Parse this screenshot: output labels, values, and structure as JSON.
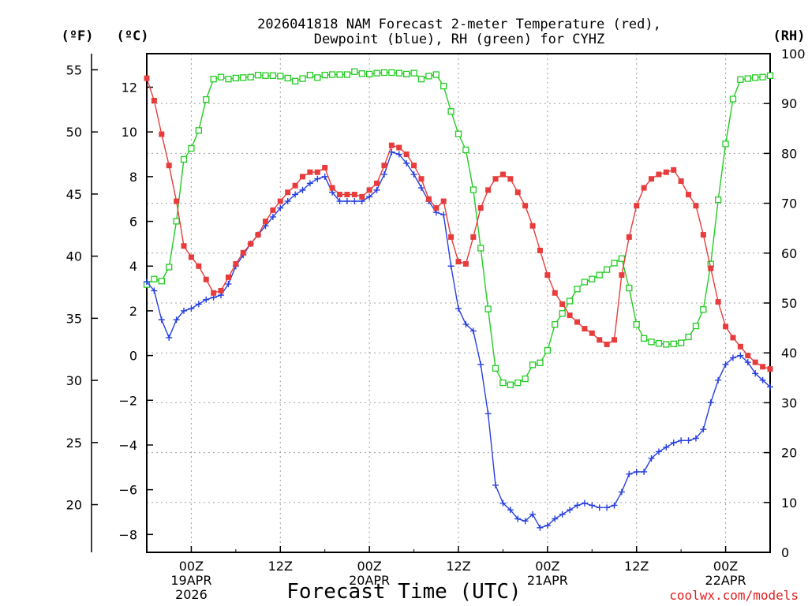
{
  "chart_data": {
    "type": "line",
    "title_line1": "2026041818 NAM Forecast 2-meter Temperature (red),",
    "title_line2": "Dewpoint (blue), RH (green) for CYHZ",
    "xlabel": "Forecast Time (UTC)",
    "credit": "coolwx.com/models",
    "unit_left_f": "(ºF)",
    "unit_left_c": "(ºC)",
    "unit_right": "(RH)",
    "x_range_hours": [
      -6,
      78
    ],
    "y_range_c": [
      -8.8,
      13.5
    ],
    "rh_range": [
      0,
      100
    ],
    "x_ticks": [
      {
        "h": 0,
        "l1": "00Z",
        "l2": "19APR",
        "l3": "2026"
      },
      {
        "h": 12,
        "l1": "12Z",
        "l2": "",
        "l3": ""
      },
      {
        "h": 24,
        "l1": "00Z",
        "l2": "20APR",
        "l3": ""
      },
      {
        "h": 36,
        "l1": "12Z",
        "l2": "",
        "l3": ""
      },
      {
        "h": 48,
        "l1": "00Z",
        "l2": "21APR",
        "l3": ""
      },
      {
        "h": 60,
        "l1": "12Z",
        "l2": "",
        "l3": ""
      },
      {
        "h": 72,
        "l1": "00Z",
        "l2": "22APR",
        "l3": ""
      }
    ],
    "c_ticks": [
      -8,
      -6,
      -4,
      -2,
      0,
      2,
      4,
      6,
      8,
      10,
      12
    ],
    "f_ticks": [
      20,
      25,
      30,
      35,
      40,
      45,
      50,
      55
    ],
    "rh_ticks": [
      0,
      10,
      20,
      30,
      40,
      50,
      60,
      70,
      80,
      90,
      100
    ],
    "colors": {
      "temperature": "#e83c3c",
      "dewpoint": "#2840e0",
      "rh": "#22cc22",
      "grid": "#a0a0a0"
    },
    "series": [
      {
        "name": "Temperature (red)",
        "unit": "C",
        "marker": "square-filled",
        "x": [
          -6,
          -5,
          -4,
          -3,
          -2,
          -1,
          0,
          1,
          2,
          3,
          4,
          5,
          6,
          7,
          8,
          9,
          10,
          11,
          12,
          13,
          14,
          15,
          16,
          17,
          18,
          19,
          20,
          21,
          22,
          23,
          24,
          25,
          26,
          27,
          28,
          29,
          30,
          31,
          32,
          33,
          34,
          35,
          36,
          37,
          38,
          39,
          40,
          41,
          42,
          43,
          44,
          45,
          46,
          47,
          48,
          49,
          50,
          51,
          52,
          53,
          54,
          55,
          56,
          57,
          58,
          59,
          60,
          61,
          62,
          63,
          64,
          65,
          66,
          67,
          68,
          69,
          70,
          71,
          72,
          73,
          74,
          75,
          76,
          77,
          78
        ],
        "values": [
          12.4,
          11.4,
          9.9,
          8.5,
          6.9,
          4.9,
          4.4,
          4.0,
          3.4,
          2.8,
          2.9,
          3.5,
          4.1,
          4.6,
          5.0,
          5.4,
          6.0,
          6.5,
          6.9,
          7.3,
          7.6,
          8.0,
          8.2,
          8.2,
          8.4,
          7.5,
          7.2,
          7.2,
          7.2,
          7.1,
          7.4,
          7.7,
          8.5,
          9.4,
          9.3,
          9.0,
          8.5,
          7.9,
          7.0,
          6.6,
          6.9,
          5.3,
          4.2,
          4.1,
          5.3,
          6.6,
          7.4,
          7.9,
          8.1,
          7.9,
          7.3,
          6.7,
          5.8,
          4.7,
          3.6,
          2.8,
          2.3,
          1.8,
          1.5,
          1.2,
          1.0,
          0.7,
          0.5,
          0.7,
          3.6,
          5.3,
          6.7,
          7.5,
          7.9,
          8.1,
          8.2,
          8.3,
          7.8,
          7.2,
          6.7,
          5.4,
          3.9,
          2.4,
          1.3,
          0.8,
          0.4,
          0.0,
          -0.3,
          -0.5,
          -0.6
        ]
      },
      {
        "name": "Dewpoint (blue)",
        "unit": "C",
        "marker": "plus",
        "x": [
          -6,
          -5,
          -4,
          -3,
          -2,
          -1,
          0,
          1,
          2,
          3,
          4,
          5,
          6,
          7,
          8,
          9,
          10,
          11,
          12,
          13,
          14,
          15,
          16,
          17,
          18,
          19,
          20,
          21,
          22,
          23,
          24,
          25,
          26,
          27,
          28,
          29,
          30,
          31,
          32,
          33,
          34,
          35,
          36,
          37,
          38,
          39,
          40,
          41,
          42,
          43,
          44,
          45,
          46,
          47,
          48,
          49,
          50,
          51,
          52,
          53,
          54,
          55,
          56,
          57,
          58,
          59,
          60,
          61,
          62,
          63,
          64,
          65,
          66,
          67,
          68,
          69,
          70,
          71,
          72,
          73,
          74,
          75,
          76,
          77,
          78
        ],
        "values": [
          3.3,
          2.9,
          1.6,
          0.8,
          1.6,
          2.0,
          2.1,
          2.3,
          2.5,
          2.6,
          2.7,
          3.2,
          4.0,
          4.5,
          5.0,
          5.4,
          5.8,
          6.2,
          6.6,
          6.9,
          7.2,
          7.4,
          7.7,
          7.9,
          8.0,
          7.3,
          6.9,
          6.9,
          6.9,
          6.9,
          7.1,
          7.4,
          8.1,
          9.1,
          9.0,
          8.6,
          8.1,
          7.5,
          6.9,
          6.4,
          6.3,
          4.0,
          2.1,
          1.4,
          1.1,
          -0.4,
          -2.6,
          -5.8,
          -6.6,
          -6.9,
          -7.3,
          -7.4,
          -7.1,
          -7.7,
          -7.6,
          -7.3,
          -7.1,
          -6.9,
          -6.7,
          -6.6,
          -6.7,
          -6.8,
          -6.8,
          -6.7,
          -6.1,
          -5.3,
          -5.2,
          -5.2,
          -4.6,
          -4.3,
          -4.1,
          -3.9,
          -3.8,
          -3.8,
          -3.7,
          -3.3,
          -2.1,
          -1.1,
          -0.4,
          -0.1,
          -0.0,
          -0.3,
          -0.8,
          -1.1,
          -1.4
        ]
      },
      {
        "name": "RH (green)",
        "unit": "%",
        "marker": "square-open",
        "x": [
          -6,
          -5,
          -4,
          -3,
          -2,
          -1,
          0,
          1,
          2,
          3,
          4,
          5,
          6,
          7,
          8,
          9,
          10,
          11,
          12,
          13,
          14,
          15,
          16,
          17,
          18,
          19,
          20,
          21,
          22,
          23,
          24,
          25,
          26,
          27,
          28,
          29,
          30,
          31,
          32,
          33,
          34,
          35,
          36,
          37,
          38,
          39,
          40,
          41,
          42,
          43,
          44,
          45,
          46,
          47,
          48,
          49,
          50,
          51,
          52,
          53,
          54,
          55,
          56,
          57,
          58,
          59,
          60,
          61,
          62,
          63,
          64,
          65,
          66,
          67,
          68,
          69,
          70,
          71,
          72,
          73,
          74,
          75,
          76,
          77,
          78
        ],
        "values": [
          53.7,
          54.8,
          54.4,
          57.2,
          66.4,
          78.8,
          81.0,
          84.6,
          90.8,
          94.9,
          95.3,
          94.9,
          95.1,
          95.2,
          95.3,
          95.7,
          95.6,
          95.6,
          95.5,
          95.1,
          94.5,
          95.0,
          95.7,
          95.2,
          95.7,
          95.8,
          95.8,
          95.8,
          96.4,
          96.0,
          95.9,
          96.1,
          96.2,
          96.2,
          96.1,
          95.9,
          96.1,
          94.9,
          95.5,
          95.8,
          93.5,
          88.4,
          83.9,
          80.7,
          72.7,
          61.0,
          48.8,
          36.9,
          34.0,
          33.6,
          34.0,
          34.8,
          37.6,
          38.0,
          40.5,
          45.7,
          47.9,
          50.4,
          52.8,
          54.2,
          54.8,
          55.6,
          56.7,
          58.0,
          58.9,
          53.0,
          45.7,
          42.9,
          42.2,
          41.9,
          41.7,
          41.8,
          42.0,
          43.2,
          45.4,
          48.7,
          57.8,
          70.7,
          81.9,
          90.9,
          94.8,
          95.0,
          95.2,
          95.3,
          95.6
        ]
      }
    ]
  }
}
